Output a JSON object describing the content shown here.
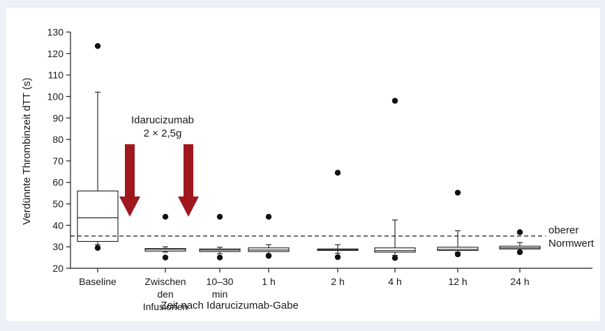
{
  "chart_data": {
    "type": "box",
    "title": "",
    "xlabel": "Zeit nach Idarucizumab-Gabe",
    "ylabel": "Verdünnte Thrombinzeit  dTT (s)",
    "ylim": [
      20,
      130
    ],
    "yticks": [
      20,
      30,
      40,
      50,
      60,
      70,
      80,
      90,
      100,
      110,
      120,
      130
    ],
    "grid": false,
    "categories": [
      [
        "Baseline"
      ],
      [
        "Zwischen",
        "den",
        "Infusionen"
      ],
      [
        "10–30",
        "min"
      ],
      [
        "1 h"
      ],
      [
        "2 h"
      ],
      [
        "4 h"
      ],
      [
        "12 h"
      ],
      [
        "24 h"
      ]
    ],
    "boxes": [
      {
        "whisker_low": 31.0,
        "q1": 32.5,
        "median": 43.5,
        "q3": 56.0,
        "whisker_high": 102.0,
        "outliers": [
          29.5,
          123.5
        ]
      },
      {
        "whisker_low": 27.5,
        "q1": 28.0,
        "median": 28.8,
        "q3": 29.2,
        "whisker_high": 30.0,
        "outliers": [
          25.0,
          44.0
        ]
      },
      {
        "whisker_low": 26.8,
        "q1": 27.8,
        "median": 28.5,
        "q3": 29.0,
        "whisker_high": 29.8,
        "outliers": [
          25.0,
          44.0
        ]
      },
      {
        "whisker_low": 26.5,
        "q1": 27.8,
        "median": 28.5,
        "q3": 29.5,
        "whisker_high": 31.0,
        "outliers": [
          25.8,
          44.0
        ]
      },
      {
        "whisker_low": 27.0,
        "q1": 28.3,
        "median": 28.7,
        "q3": 29.0,
        "whisker_high": 31.0,
        "outliers": [
          25.2,
          64.5
        ]
      },
      {
        "whisker_low": 26.0,
        "q1": 27.5,
        "median": 28.2,
        "q3": 29.5,
        "whisker_high": 42.5,
        "outliers": [
          24.8,
          98.0
        ]
      },
      {
        "whisker_low": 27.5,
        "q1": 28.3,
        "median": 28.8,
        "q3": 29.8,
        "whisker_high": 37.5,
        "outliers": [
          26.5,
          55.2
        ]
      },
      {
        "whisker_low": 28.0,
        "q1": 29.0,
        "median": 29.5,
        "q3": 30.3,
        "whisker_high": 32.0,
        "outliers": [
          27.5,
          36.8
        ]
      }
    ],
    "reference_line": {
      "value": 35,
      "style": "dashed",
      "label": [
        "oberer",
        "Normwert"
      ]
    },
    "annotation": {
      "lines": [
        "Idarucizumab",
        "2 × 2,5g"
      ],
      "arrow_color": "#a0171e"
    }
  }
}
